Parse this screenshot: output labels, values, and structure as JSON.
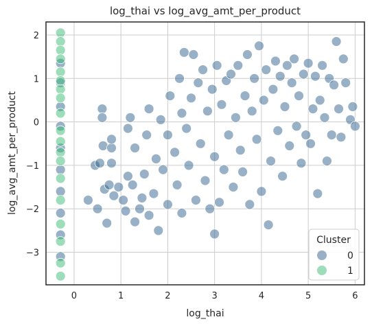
{
  "chart_data": {
    "type": "scatter",
    "title": "log_thai vs log_avg_amt_per_product",
    "xlabel": "log_thai",
    "ylabel": "log_avg_amt_per_product",
    "xlim": [
      -0.6,
      6.2
    ],
    "ylim": [
      -3.75,
      2.3
    ],
    "xticks": [
      "0",
      "1",
      "2",
      "3",
      "4",
      "5",
      "6"
    ],
    "yticks": [
      "−3",
      "−2",
      "−1",
      "0",
      "1",
      "2"
    ],
    "grid": true,
    "legend": {
      "title": "Cluster",
      "placement": "bottom-right",
      "entries": [
        {
          "label": "0",
          "color": "#33638d"
        },
        {
          "label": "1",
          "color": "#3cbb75"
        }
      ]
    },
    "series": [
      {
        "name": "0",
        "color": "#33638d",
        "opacity": 0.5,
        "points": [
          [
            -0.29,
            -3.1
          ],
          [
            -0.29,
            -2.6
          ],
          [
            -0.29,
            -2.1
          ],
          [
            -0.29,
            -1.6
          ],
          [
            -0.29,
            -1.1
          ],
          [
            -0.29,
            -0.6
          ],
          [
            -0.29,
            -0.1
          ],
          [
            -0.29,
            0.35
          ],
          [
            -0.29,
            0.9
          ],
          [
            -0.29,
            1.35
          ],
          [
            0.45,
            -1.0
          ],
          [
            0.55,
            -0.95
          ],
          [
            0.6,
            0.3
          ],
          [
            0.6,
            0.1
          ],
          [
            0.65,
            -1.55
          ],
          [
            0.7,
            -2.33
          ],
          [
            0.62,
            -0.55
          ],
          [
            0.3,
            -1.8
          ],
          [
            0.5,
            -2.0
          ],
          [
            0.75,
            -1.45
          ],
          [
            0.8,
            -0.95
          ],
          [
            0.85,
            -1.7
          ],
          [
            0.8,
            -0.6
          ],
          [
            0.8,
            -0.4
          ],
          [
            0.95,
            -1.5
          ],
          [
            1.05,
            -1.8
          ],
          [
            1.1,
            -2.05
          ],
          [
            1.15,
            -1.25
          ],
          [
            1.2,
            0.1
          ],
          [
            1.15,
            -0.15
          ],
          [
            1.25,
            -1.45
          ],
          [
            1.3,
            -0.6
          ],
          [
            1.3,
            -2.3
          ],
          [
            1.4,
            -2.0
          ],
          [
            1.45,
            -1.75
          ],
          [
            1.5,
            -1.2
          ],
          [
            1.55,
            -0.3
          ],
          [
            1.6,
            0.3
          ],
          [
            1.6,
            -2.15
          ],
          [
            1.7,
            -1.65
          ],
          [
            1.75,
            -0.85
          ],
          [
            1.8,
            -2.5
          ],
          [
            1.85,
            0.05
          ],
          [
            1.9,
            -1.1
          ],
          [
            2.0,
            -0.3
          ],
          [
            2.0,
            -1.9
          ],
          [
            2.05,
            0.6
          ],
          [
            2.15,
            -0.7
          ],
          [
            2.2,
            -1.45
          ],
          [
            2.25,
            1.0
          ],
          [
            2.3,
            0.2
          ],
          [
            2.3,
            -2.1
          ],
          [
            2.35,
            1.6
          ],
          [
            2.4,
            -0.15
          ],
          [
            2.45,
            -1.0
          ],
          [
            2.5,
            0.55
          ],
          [
            2.55,
            1.55
          ],
          [
            2.6,
            -1.8
          ],
          [
            2.65,
            0.9
          ],
          [
            2.7,
            -0.5
          ],
          [
            2.75,
            1.2
          ],
          [
            2.8,
            -1.35
          ],
          [
            2.85,
            0.25
          ],
          [
            2.9,
            -2.0
          ],
          [
            2.95,
            0.75
          ],
          [
            3.0,
            -2.58
          ],
          [
            3.0,
            -0.8
          ],
          [
            3.05,
            1.3
          ],
          [
            3.1,
            -1.85
          ],
          [
            3.15,
            0.4
          ],
          [
            3.2,
            -1.1
          ],
          [
            3.25,
            0.95
          ],
          [
            3.3,
            -0.3
          ],
          [
            3.35,
            1.1
          ],
          [
            3.4,
            -1.5
          ],
          [
            3.45,
            0.1
          ],
          [
            3.5,
            1.3
          ],
          [
            3.55,
            -0.65
          ],
          [
            3.6,
            -1.15
          ],
          [
            3.65,
            0.6
          ],
          [
            3.7,
            1.55
          ],
          [
            3.75,
            -1.9
          ],
          [
            3.8,
            0.25
          ],
          [
            3.85,
            1.0
          ],
          [
            3.9,
            -0.4
          ],
          [
            3.95,
            1.75
          ],
          [
            4.0,
            -1.6
          ],
          [
            4.05,
            0.5
          ],
          [
            4.1,
            1.2
          ],
          [
            4.15,
            -2.37
          ],
          [
            4.2,
            -0.9
          ],
          [
            4.25,
            0.75
          ],
          [
            4.3,
            1.4
          ],
          [
            4.35,
            -0.2
          ],
          [
            4.4,
            1.05
          ],
          [
            4.45,
            -1.25
          ],
          [
            4.5,
            0.35
          ],
          [
            4.55,
            1.3
          ],
          [
            4.6,
            -0.55
          ],
          [
            4.65,
            0.9
          ],
          [
            4.7,
            1.45
          ],
          [
            4.75,
            -0.1
          ],
          [
            4.8,
            0.6
          ],
          [
            4.85,
            -0.95
          ],
          [
            4.9,
            1.1
          ],
          [
            4.95,
            -0.3
          ],
          [
            5.0,
            1.35
          ],
          [
            5.05,
            -0.5
          ],
          [
            5.1,
            0.3
          ],
          [
            5.15,
            1.05
          ],
          [
            5.2,
            -1.65
          ],
          [
            5.25,
            0.5
          ],
          [
            5.3,
            1.3
          ],
          [
            5.35,
            0.1
          ],
          [
            5.4,
            -0.9
          ],
          [
            5.45,
            1.0
          ],
          [
            5.5,
            -0.3
          ],
          [
            5.55,
            0.85
          ],
          [
            5.6,
            1.85
          ],
          [
            5.65,
            0.3
          ],
          [
            5.7,
            -0.35
          ],
          [
            5.75,
            1.45
          ],
          [
            5.8,
            0.9
          ],
          [
            5.9,
            0.05
          ],
          [
            5.95,
            0.35
          ],
          [
            6.0,
            -0.1
          ]
        ]
      },
      {
        "name": "1",
        "color": "#3cbb75",
        "opacity": 0.5,
        "points": [
          [
            -0.29,
            2.05
          ],
          [
            -0.29,
            1.85
          ],
          [
            -0.29,
            1.65
          ],
          [
            -0.29,
            1.45
          ],
          [
            -0.29,
            1.15
          ],
          [
            -0.29,
            0.95
          ],
          [
            -0.29,
            0.75
          ],
          [
            -0.29,
            0.55
          ],
          [
            -0.29,
            0.2
          ],
          [
            -0.29,
            -0.2
          ],
          [
            -0.29,
            -0.45
          ],
          [
            -0.29,
            -0.7
          ],
          [
            -0.29,
            -0.9
          ],
          [
            -0.29,
            -1.3
          ],
          [
            -0.29,
            -1.8
          ],
          [
            -0.29,
            -2.35
          ],
          [
            -0.29,
            -2.75
          ],
          [
            -0.29,
            -3.25
          ],
          [
            -0.29,
            -3.55
          ]
        ]
      }
    ]
  }
}
